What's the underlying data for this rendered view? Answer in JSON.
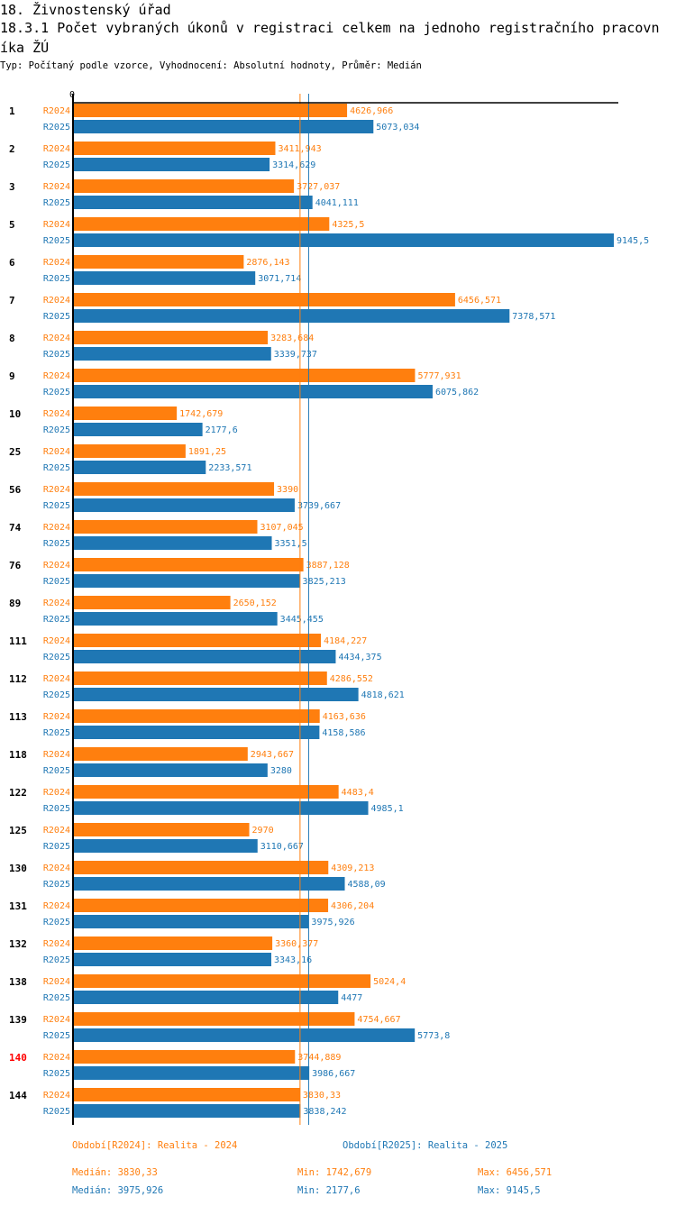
{
  "header": {
    "section_title": "18. Živnostenský úřad",
    "chart_title": "18.3.1 Počet vybraných úkonů v registraci celkem na jednoho registračního pracovníka ŽÚ",
    "subtitle": "Typ: Počítaný podle vzorce, Vyhodnocení: Absolutní hodnoty, Průměr: Medián"
  },
  "colors": {
    "R2024": "#ff7f0e",
    "R2025": "#1f77b4",
    "highlight_category": "#ff0000"
  },
  "chart_data": {
    "type": "bar",
    "orientation": "horizontal",
    "title": "18.3.1 Počet vybraných úkonů v registraci celkem na jednoho registračního pracovníka ŽÚ",
    "xlabel": "",
    "ylabel": "",
    "x_tick_labels": [
      "0"
    ],
    "xlim": [
      0,
      9300
    ],
    "grid": false,
    "highlighted_category": "140",
    "categories": [
      "1",
      "2",
      "3",
      "5",
      "6",
      "7",
      "8",
      "9",
      "10",
      "25",
      "56",
      "74",
      "76",
      "89",
      "111",
      "112",
      "113",
      "118",
      "122",
      "125",
      "130",
      "131",
      "132",
      "138",
      "139",
      "140",
      "144"
    ],
    "series": [
      {
        "name": "R2024",
        "values": [
          4626.966,
          3411.943,
          3727.037,
          4325.5,
          2876.143,
          6456.571,
          3283.684,
          5777.931,
          1742.679,
          1891.25,
          3390,
          3107.045,
          3887.128,
          2650.152,
          4184.227,
          4286.552,
          4163.636,
          2943.667,
          4483.4,
          2970,
          4309.213,
          4306.204,
          3360.377,
          5024.4,
          4754.667,
          3744.889,
          3830.33
        ],
        "labels": [
          "4626,966",
          "3411,943",
          "3727,037",
          "4325,5",
          "2876,143",
          "6456,571",
          "3283,684",
          "5777,931",
          "1742,679",
          "1891,25",
          "3390",
          "3107,045",
          "3887,128",
          "2650,152",
          "4184,227",
          "4286,552",
          "4163,636",
          "2943,667",
          "4483,4",
          "2970",
          "4309,213",
          "4306,204",
          "3360,377",
          "5024,4",
          "4754,667",
          "3744,889",
          "3830,33"
        ],
        "median": 3830.33
      },
      {
        "name": "R2025",
        "values": [
          5073.034,
          3314.629,
          4041.111,
          9145.5,
          3071.714,
          7378.571,
          3339.737,
          6075.862,
          2177.6,
          2233.571,
          3739.667,
          3351.5,
          3825.213,
          3445.455,
          4434.375,
          4818.621,
          4158.586,
          3280,
          4985.1,
          3110.667,
          4588.09,
          3975.926,
          3343.16,
          4477,
          5773.8,
          3986.667,
          3838.242
        ],
        "labels": [
          "5073,034",
          "3314,629",
          "4041,111",
          "9145,5",
          "3071,714",
          "7378,571",
          "3339,737",
          "6075,862",
          "2177,6",
          "2233,571",
          "3739,667",
          "3351,5",
          "3825,213",
          "3445,455",
          "4434,375",
          "4818,621",
          "4158,586",
          "3280",
          "4985,1",
          "3110,667",
          "4588,09",
          "3975,926",
          "3343,16",
          "4477",
          "5773,8",
          "3986,667",
          "3838,242"
        ],
        "median": 3975.926
      }
    ]
  },
  "legend": {
    "R2024": "Období[R2024]: Realita - 2024",
    "R2025": "Období[R2025]: Realita - 2025"
  },
  "stats": {
    "R2024": {
      "median": "Medián: 3830,33",
      "min": "Min: 1742,679",
      "max": "Max: 6456,571"
    },
    "R2025": {
      "median": "Medián: 3975,926",
      "min": "Min: 2177,6",
      "max": "Max: 9145,5"
    }
  }
}
